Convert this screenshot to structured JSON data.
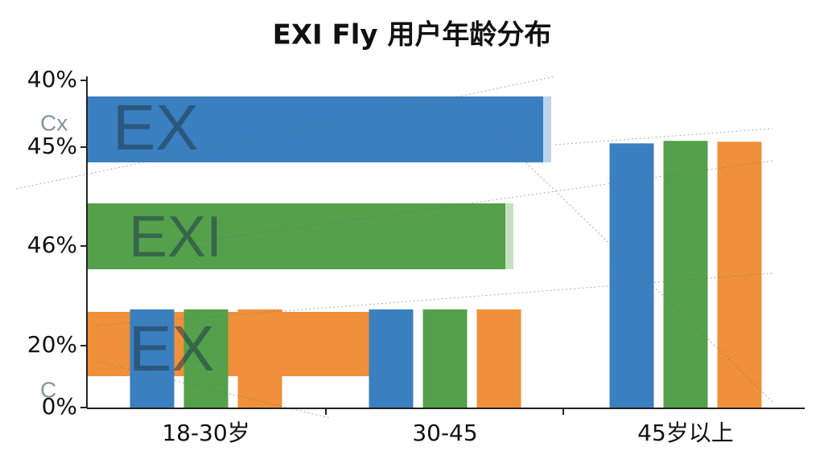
{
  "chart_data": {
    "type": "bar",
    "title": "EXI Fly 用户年龄分布",
    "categories": [
      "18-30岁",
      "30-45",
      "45岁以上"
    ],
    "series": [
      {
        "color": "#3a7fbf",
        "values": [
          12,
          12,
          32.3
        ]
      },
      {
        "color": "#55a04b",
        "values": [
          12,
          12,
          32.6
        ]
      },
      {
        "color": "#f0903a",
        "values": [
          12,
          12,
          32.5
        ]
      }
    ],
    "ylim": [
      0,
      40
    ],
    "yticks": [
      {
        "value": 0,
        "label": "0%"
      },
      {
        "value": 40,
        "label": "40%"
      }
    ],
    "extra_axis_labels": [
      "45%",
      "46%",
      "20%"
    ],
    "watermarks": [
      "EX",
      "EXI",
      "EX",
      "Cx",
      "C"
    ]
  }
}
